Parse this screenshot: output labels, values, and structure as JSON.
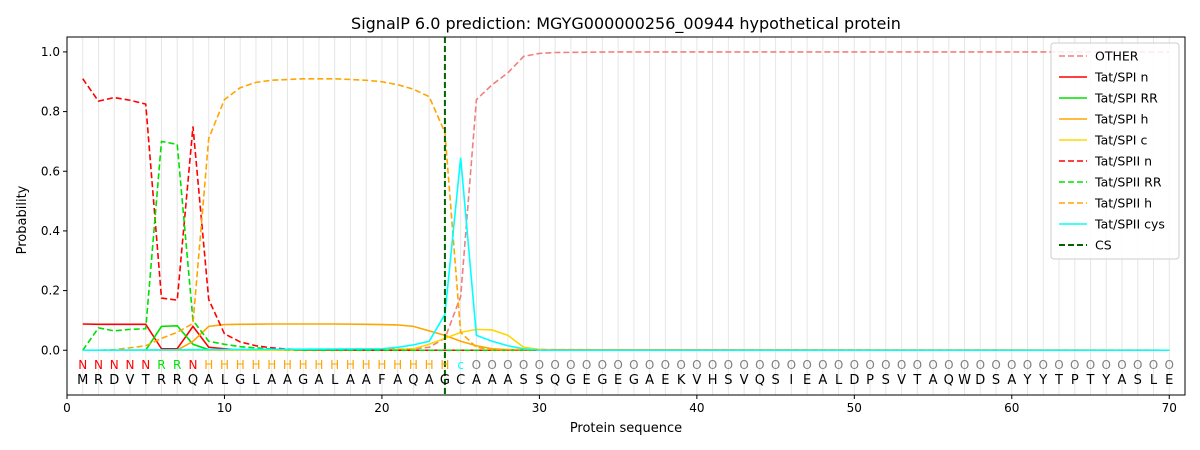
{
  "chart_data": {
    "type": "line",
    "title": "SignalP 6.0 prediction: MGYG000000256_00944 hypothetical protein",
    "xlabel": "Protein sequence",
    "ylabel": "Probability",
    "xlim": [
      0,
      71
    ],
    "ylim": [
      -0.15,
      1.05
    ],
    "x_ticks": [
      0,
      10,
      20,
      30,
      40,
      50,
      60,
      70
    ],
    "y_ticks": [
      0.0,
      0.2,
      0.4,
      0.6,
      0.8,
      1.0
    ],
    "x_tick_labels": [
      "0",
      "10",
      "20",
      "30",
      "40",
      "50",
      "60",
      "70"
    ],
    "y_tick_labels": [
      "0.0",
      "0.2",
      "0.4",
      "0.6",
      "0.8",
      "1.0"
    ],
    "grid": "vertical lines at each residue",
    "legend_position": "top-right",
    "cleavage_site": 24,
    "sequence": "MRDVTRRQALGLAAGALAAFAQAGCAAASSQGEGEGAEKVHSVQSIEALDPSVTAQWDSAYYTPTYASLE",
    "region_labels": "NNNNNRRNHHHHHHHHHHHHHHHHcOOOOOOOOOOOOOOOOOOOOOOOOOOOOOOOOOOOOOOOOOOOOOO",
    "region_label_colors": {
      "N": "#ff0000",
      "R": "#00e000",
      "H": "#ffa500",
      "c": "#00ffff",
      "O": "#808080"
    },
    "series": [
      {
        "name": "OTHER",
        "color": "#f08080",
        "dash": true,
        "x": [
          1,
          5,
          10,
          15,
          20,
          22,
          23,
          24,
          25,
          26,
          27,
          28,
          29,
          30,
          31,
          35,
          40,
          70
        ],
        "y": [
          0,
          0,
          0,
          0,
          0.002,
          0.005,
          0.01,
          0.04,
          0.18,
          0.84,
          0.89,
          0.93,
          0.985,
          0.995,
          0.998,
          1.0,
          1.0,
          1.0
        ]
      },
      {
        "name": "Tat/SPI n",
        "color": "#ff0000",
        "dash": false,
        "x": [
          1,
          2,
          3,
          4,
          5,
          6,
          7,
          8,
          9,
          10,
          11,
          70
        ],
        "y": [
          0.088,
          0.087,
          0.087,
          0.087,
          0.087,
          0.005,
          0.005,
          0.08,
          0.01,
          0.005,
          0.0,
          0.0
        ]
      },
      {
        "name": "Tat/SPI RR",
        "color": "#00e000",
        "dash": false,
        "x": [
          1,
          5,
          6,
          7,
          8,
          9,
          10,
          70
        ],
        "y": [
          0.0,
          0.0,
          0.08,
          0.082,
          0.02,
          0.002,
          0.0,
          0.0
        ]
      },
      {
        "name": "Tat/SPI h",
        "color": "#ffa500",
        "dash": false,
        "x": [
          1,
          7,
          8,
          9,
          10,
          11,
          13,
          15,
          17,
          19,
          21,
          22,
          23,
          24,
          25,
          26,
          27,
          28,
          70
        ],
        "y": [
          0.0,
          0.0,
          0.03,
          0.08,
          0.086,
          0.087,
          0.088,
          0.088,
          0.088,
          0.087,
          0.085,
          0.08,
          0.065,
          0.05,
          0.03,
          0.015,
          0.005,
          0.002,
          0.0
        ]
      },
      {
        "name": "Tat/SPI c",
        "color": "#ffd700",
        "dash": false,
        "x": [
          1,
          20,
          22,
          23,
          24,
          25,
          26,
          27,
          28,
          29,
          30,
          31,
          70
        ],
        "y": [
          0.0,
          0.0,
          0.005,
          0.02,
          0.04,
          0.06,
          0.07,
          0.068,
          0.05,
          0.01,
          0.003,
          0.0,
          0.0
        ]
      },
      {
        "name": "Tat/SPII n",
        "color": "#ff0000",
        "dash": true,
        "x": [
          1,
          2,
          3,
          4,
          5,
          6,
          7,
          8,
          9,
          10,
          11,
          12,
          13,
          14,
          15,
          20,
          70
        ],
        "y": [
          0.91,
          0.835,
          0.847,
          0.838,
          0.825,
          0.175,
          0.168,
          0.75,
          0.17,
          0.055,
          0.028,
          0.015,
          0.008,
          0.004,
          0.002,
          0.0,
          0.0
        ]
      },
      {
        "name": "Tat/SPII RR",
        "color": "#00e000",
        "dash": true,
        "x": [
          1,
          2,
          3,
          4,
          5,
          6,
          7,
          8,
          9,
          10,
          11,
          12,
          13,
          15,
          20,
          70
        ],
        "y": [
          0.0,
          0.075,
          0.065,
          0.07,
          0.072,
          0.7,
          0.69,
          0.1,
          0.03,
          0.02,
          0.012,
          0.008,
          0.004,
          0.0,
          0.0,
          0.0
        ]
      },
      {
        "name": "Tat/SPII h",
        "color": "#ffa500",
        "dash": true,
        "x": [
          1,
          2,
          3,
          4,
          5,
          6,
          7,
          8,
          9,
          10,
          11,
          12,
          13,
          15,
          17,
          19,
          20,
          21,
          22,
          23,
          24,
          25,
          26,
          27,
          70
        ],
        "y": [
          0.0,
          0.0,
          0.002,
          0.008,
          0.015,
          0.04,
          0.06,
          0.09,
          0.71,
          0.84,
          0.88,
          0.898,
          0.905,
          0.91,
          0.91,
          0.905,
          0.9,
          0.89,
          0.875,
          0.85,
          0.73,
          0.06,
          0.01,
          0.002,
          0.0
        ]
      },
      {
        "name": "Tat/SPII cys",
        "color": "#00ffff",
        "dash": false,
        "x": [
          1,
          20,
          21,
          22,
          23,
          24,
          25,
          26,
          27,
          28,
          29,
          30,
          70
        ],
        "y": [
          0.0,
          0.005,
          0.01,
          0.018,
          0.03,
          0.12,
          0.645,
          0.05,
          0.03,
          0.015,
          0.005,
          0.0,
          0.0
        ]
      }
    ],
    "legend_extra": {
      "name": "CS",
      "color": "#006400",
      "dash": true
    }
  }
}
